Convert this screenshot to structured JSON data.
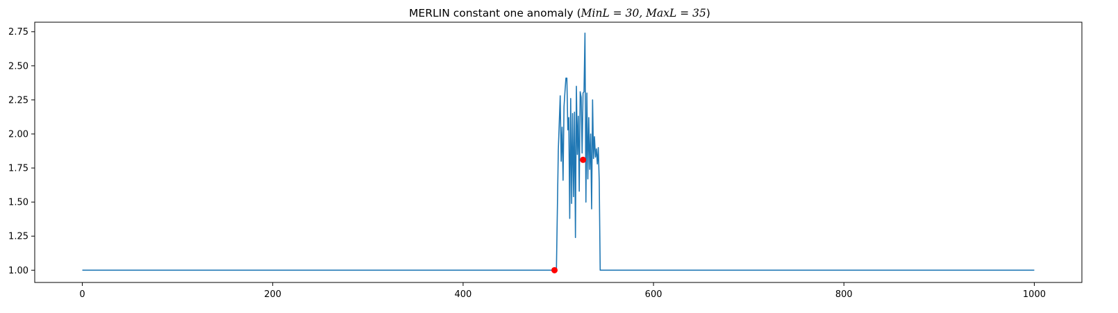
{
  "chart_data": {
    "type": "line",
    "title": {
      "prefix": "MERLIN constant one anomaly (",
      "math": "MinL = 30, MaxL = 35",
      "suffix": ")"
    },
    "xlabel": "",
    "ylabel": "",
    "xlim": [
      -50,
      1050
    ],
    "ylim": [
      0.91,
      2.82
    ],
    "xticks": [
      0,
      200,
      400,
      600,
      800,
      1000
    ],
    "yticks": [
      1.0,
      1.25,
      1.5,
      1.75,
      2.0,
      2.25,
      2.5,
      2.75
    ],
    "ytick_labels": [
      "1.00",
      "1.25",
      "1.50",
      "1.75",
      "2.00",
      "2.25",
      "2.50",
      "2.75"
    ],
    "grid": false,
    "series": [
      {
        "color": "#1f77b4",
        "style": "line",
        "x": [
          0,
          496,
          498,
          500,
          502,
          503,
          504,
          505,
          506,
          507,
          508,
          509,
          510,
          511,
          512,
          513,
          514,
          515,
          516,
          517,
          518,
          519,
          520,
          521,
          522,
          523,
          524,
          525,
          526,
          527,
          528,
          529,
          530,
          531,
          532,
          533,
          534,
          535,
          536,
          537,
          538,
          539,
          540,
          541,
          542,
          543,
          544,
          545,
          546,
          547,
          548,
          549,
          550,
          552,
          1000
        ],
        "y": [
          1.0,
          1.0,
          1.0,
          1.88,
          2.28,
          1.8,
          2.05,
          1.66,
          2.2,
          2.31,
          2.41,
          2.41,
          2.03,
          2.12,
          1.38,
          2.26,
          1.49,
          2.15,
          1.54,
          2.16,
          1.24,
          2.35,
          1.85,
          2.13,
          1.58,
          2.31,
          2.27,
          1.86,
          2.3,
          2.31,
          2.74,
          1.5,
          2.3,
          1.67,
          2.12,
          1.74,
          2.0,
          1.45,
          2.25,
          1.82,
          1.98,
          1.83,
          1.89,
          1.78,
          1.9,
          1.65,
          1.0,
          1.0,
          1.0,
          1.0,
          1.0,
          1.0,
          1.0,
          1.0,
          1.0
        ]
      },
      {
        "color": "#ff0000",
        "style": "markers",
        "x": [
          496,
          526
        ],
        "y": [
          1.0,
          1.81
        ]
      }
    ]
  }
}
